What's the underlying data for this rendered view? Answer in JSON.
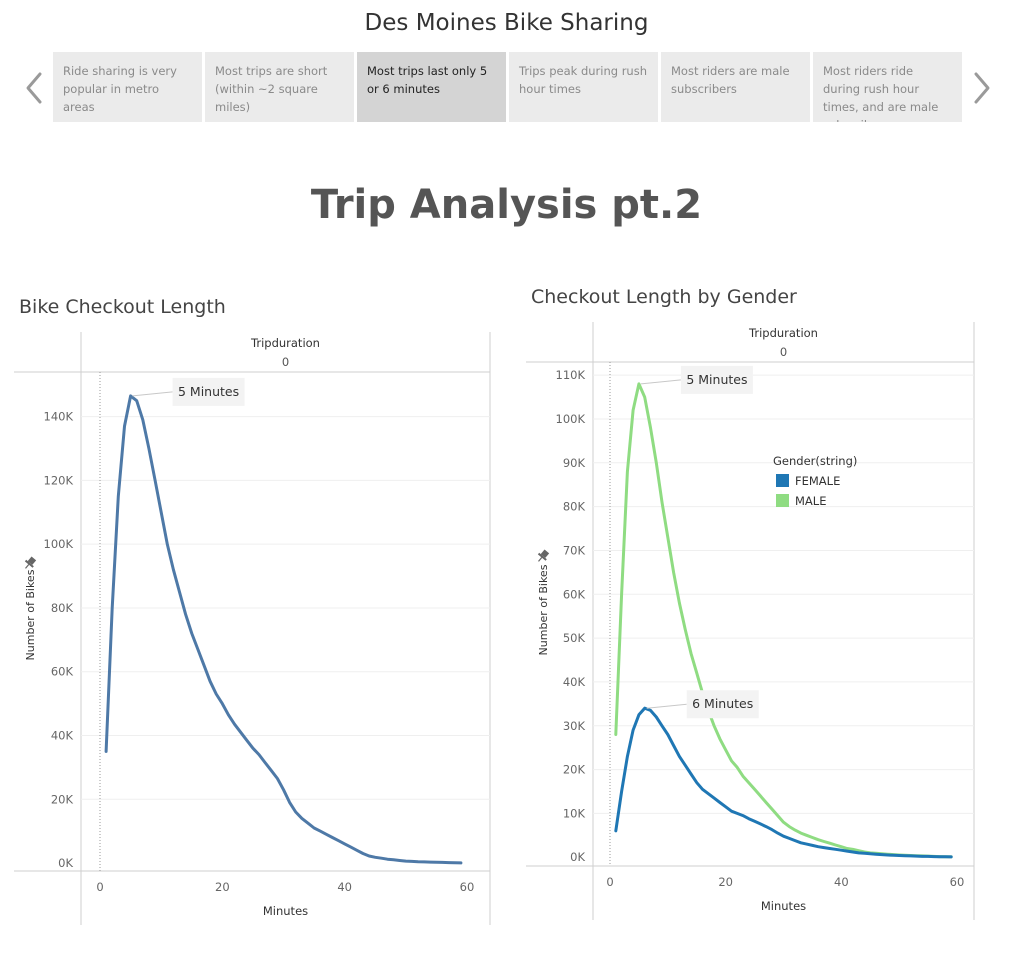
{
  "story": {
    "title": "Des Moines Bike Sharing",
    "points": [
      {
        "label": "Ride sharing is very popular in metro areas",
        "active": false
      },
      {
        "label": "Most trips are short (within ~2 square miles)",
        "active": false
      },
      {
        "label": "Most trips last only 5 or 6 minutes",
        "active": true
      },
      {
        "label": "Trips peak during rush hour times",
        "active": false
      },
      {
        "label": "Most riders are male subscribers",
        "active": false
      },
      {
        "label": "Most riders ride during rush hour times, and are male subscribers",
        "active": false
      }
    ]
  },
  "dashboard": {
    "title": "Trip Analysis pt.2"
  },
  "colors": {
    "total": "#4e79a7",
    "female": "#1f77b4",
    "male": "#8fdc82"
  },
  "chart_data": [
    {
      "type": "line",
      "title": "Bike Checkout Length",
      "column_header": "Tripduration",
      "column_value": "0",
      "xlabel": "Minutes",
      "ylabel": "Number of Bikes",
      "xlim": [
        -3,
        63
      ],
      "ylim": [
        -2500,
        154000
      ],
      "x_ticks": [
        0,
        20,
        40,
        60
      ],
      "y_ticks": [
        {
          "value": 0,
          "label": "0K"
        },
        {
          "value": 20000,
          "label": "20K"
        },
        {
          "value": 40000,
          "label": "40K"
        },
        {
          "value": 60000,
          "label": "60K"
        },
        {
          "value": 80000,
          "label": "80K"
        },
        {
          "value": 100000,
          "label": "100K"
        },
        {
          "value": 120000,
          "label": "120K"
        },
        {
          "value": 140000,
          "label": "140K"
        }
      ],
      "grid": true,
      "series": [
        {
          "color": "#4e79a7",
          "x": [
            1,
            2,
            3,
            4,
            5,
            6,
            7,
            8,
            9,
            10,
            11,
            12,
            13,
            14,
            15,
            16,
            17,
            18,
            19,
            20,
            21,
            22,
            23,
            24,
            25,
            26,
            27,
            28,
            29,
            30,
            31,
            32,
            33,
            34,
            35,
            36,
            37,
            38,
            39,
            40,
            41,
            42,
            43,
            44,
            45,
            46,
            47,
            48,
            49,
            50,
            51,
            52,
            53,
            54,
            55,
            56,
            57,
            58,
            59
          ],
          "y": [
            35000,
            80000,
            115000,
            137000,
            146500,
            145000,
            139000,
            130000,
            120000,
            110000,
            100000,
            92000,
            85000,
            78000,
            72000,
            67000,
            62000,
            57000,
            53000,
            50000,
            46500,
            43500,
            41000,
            38500,
            36000,
            34000,
            31500,
            29000,
            26500,
            23000,
            19000,
            16000,
            14000,
            12500,
            11000,
            10000,
            9000,
            8000,
            7000,
            6000,
            5000,
            4000,
            3000,
            2200,
            1800,
            1500,
            1200,
            1000,
            800,
            600,
            500,
            400,
            350,
            300,
            250,
            200,
            150,
            100,
            50
          ]
        }
      ],
      "annotations": [
        {
          "text": "5 Minutes",
          "x": 5,
          "y": 146500
        }
      ]
    },
    {
      "type": "line",
      "title": "Checkout Length by Gender",
      "column_header": "Tripduration",
      "column_value": "0",
      "xlabel": "Minutes",
      "ylabel": "Number of Bikes",
      "xlim": [
        -3,
        63
      ],
      "ylim": [
        -2000,
        113000
      ],
      "x_ticks": [
        0,
        20,
        40,
        60
      ],
      "y_ticks": [
        {
          "value": 0,
          "label": "0K"
        },
        {
          "value": 10000,
          "label": "10K"
        },
        {
          "value": 20000,
          "label": "20K"
        },
        {
          "value": 30000,
          "label": "30K"
        },
        {
          "value": 40000,
          "label": "40K"
        },
        {
          "value": 50000,
          "label": "50K"
        },
        {
          "value": 60000,
          "label": "60K"
        },
        {
          "value": 70000,
          "label": "70K"
        },
        {
          "value": 80000,
          "label": "80K"
        },
        {
          "value": 90000,
          "label": "90K"
        },
        {
          "value": 100000,
          "label": "100K"
        },
        {
          "value": 110000,
          "label": "110K"
        }
      ],
      "grid": true,
      "legend": {
        "title": "Gender(string)",
        "position": "top-right",
        "entries": [
          {
            "name": "FEMALE",
            "color": "#1f77b4"
          },
          {
            "name": "MALE",
            "color": "#8fdc82"
          }
        ]
      },
      "series": [
        {
          "name": "MALE",
          "color": "#8fdc82",
          "x": [
            1,
            2,
            3,
            4,
            5,
            6,
            7,
            8,
            9,
            10,
            11,
            12,
            13,
            14,
            15,
            16,
            17,
            18,
            19,
            20,
            21,
            22,
            23,
            24,
            25,
            26,
            27,
            28,
            29,
            30,
            31,
            32,
            33,
            34,
            35,
            36,
            37,
            38,
            39,
            40,
            41,
            42,
            43,
            44,
            45,
            46,
            47,
            48,
            49,
            50,
            51,
            52,
            53,
            54,
            55,
            56,
            57,
            58,
            59
          ],
          "y": [
            28000,
            60000,
            88000,
            102000,
            108000,
            105000,
            98000,
            90000,
            81000,
            73000,
            65000,
            58000,
            52000,
            46500,
            42000,
            37500,
            33500,
            30000,
            27000,
            24500,
            22000,
            20500,
            18500,
            17000,
            15500,
            14000,
            12500,
            11000,
            9500,
            8000,
            7000,
            6200,
            5500,
            5000,
            4500,
            4000,
            3600,
            3200,
            2800,
            2400,
            2000,
            1800,
            1500,
            1200,
            1000,
            900,
            800,
            700,
            600,
            500,
            450,
            400,
            350,
            300,
            250,
            200,
            150,
            120,
            100
          ]
        },
        {
          "name": "FEMALE",
          "color": "#1f77b4",
          "x": [
            1,
            2,
            3,
            4,
            5,
            6,
            7,
            8,
            9,
            10,
            11,
            12,
            13,
            14,
            15,
            16,
            17,
            18,
            19,
            20,
            21,
            22,
            23,
            24,
            25,
            26,
            27,
            28,
            29,
            30,
            31,
            32,
            33,
            34,
            35,
            36,
            37,
            38,
            39,
            40,
            41,
            42,
            43,
            44,
            45,
            46,
            47,
            48,
            49,
            50,
            51,
            52,
            53,
            54,
            55,
            56,
            57,
            58,
            59
          ],
          "y": [
            6000,
            15000,
            23000,
            29000,
            32500,
            34000,
            33500,
            32000,
            30000,
            28000,
            25500,
            23000,
            21000,
            19000,
            17000,
            15500,
            14500,
            13500,
            12500,
            11500,
            10500,
            10000,
            9500,
            8800,
            8200,
            7600,
            7000,
            6300,
            5500,
            4800,
            4300,
            3800,
            3300,
            3000,
            2700,
            2400,
            2200,
            2000,
            1800,
            1600,
            1400,
            1200,
            1000,
            900,
            800,
            700,
            600,
            500,
            450,
            400,
            350,
            300,
            250,
            200,
            180,
            150,
            120,
            100,
            80
          ]
        }
      ],
      "annotations": [
        {
          "text": "5 Minutes",
          "x": 5,
          "y": 108000
        },
        {
          "text": "6 Minutes",
          "x": 6,
          "y": 34000
        }
      ]
    }
  ]
}
